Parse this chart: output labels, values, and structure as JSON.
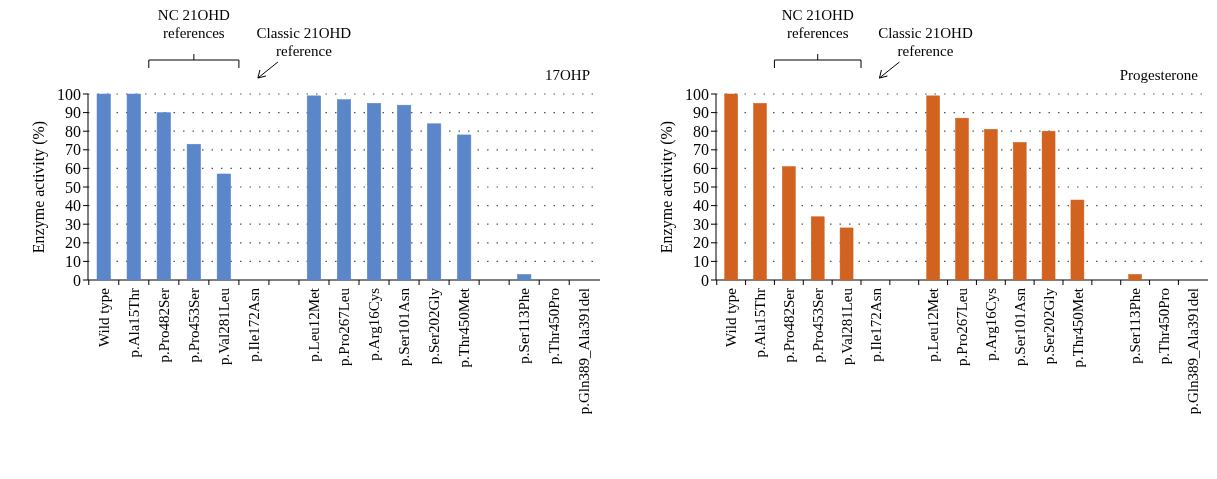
{
  "chart_data": [
    {
      "type": "bar",
      "title": "17OHP",
      "ylabel": "Enzyme activity (%)",
      "categories": [
        "Wild type",
        "p.Ala15Thr",
        "p.Pro482Ser",
        "p.Pro453Ser",
        "p.Val281Leu",
        "p.Ile172Asn",
        null,
        "p.Leu12Met",
        "p.Pro267Leu",
        "p.Arg16Cys",
        "p.Ser101Asn",
        "p.Ser202Gly",
        "p.Thr450Met",
        null,
        "p.Ser113Phe",
        "p.Thr450Pro",
        "p.Gln389_Ala391del"
      ],
      "values": [
        100,
        100,
        90,
        73,
        57,
        0,
        null,
        99,
        97,
        95,
        94,
        84,
        78,
        null,
        3,
        0,
        0
      ],
      "color": "#5b86c9",
      "ylim": [
        0,
        100
      ],
      "yticks": [
        0,
        10,
        20,
        30,
        40,
        50,
        60,
        70,
        80,
        90,
        100
      ],
      "grid": "y",
      "annotations": [
        "NC 21OHD references",
        "Classic 21OHD reference"
      ]
    },
    {
      "type": "bar",
      "title": "Progesterone",
      "ylabel": "Enzyme activity (%)",
      "categories": [
        "Wild type",
        "p.Ala15Thr",
        "p.Pro482Ser",
        "p.Pro453Ser",
        "p.Val281Leu",
        "p.Ile172Asn",
        null,
        "p.Leu12Met",
        "p.Pro267Leu",
        "p.Arg16Cys",
        "p.Ser101Asn",
        "p.Ser202Gly",
        "p.Thr450Met",
        null,
        "p.Ser113Phe",
        "p.Thr450Pro",
        "p.Gln389_Ala391del"
      ],
      "values": [
        100,
        95,
        61,
        34,
        28,
        0,
        null,
        99,
        87,
        81,
        74,
        80,
        43,
        null,
        3,
        0,
        0
      ],
      "color": "#d2621f",
      "ylim": [
        0,
        100
      ],
      "yticks": [
        0,
        10,
        20,
        30,
        40,
        50,
        60,
        70,
        80,
        90,
        100
      ],
      "grid": "y",
      "annotations": [
        "NC 21OHD references",
        "Classic 21OHD reference"
      ]
    }
  ]
}
